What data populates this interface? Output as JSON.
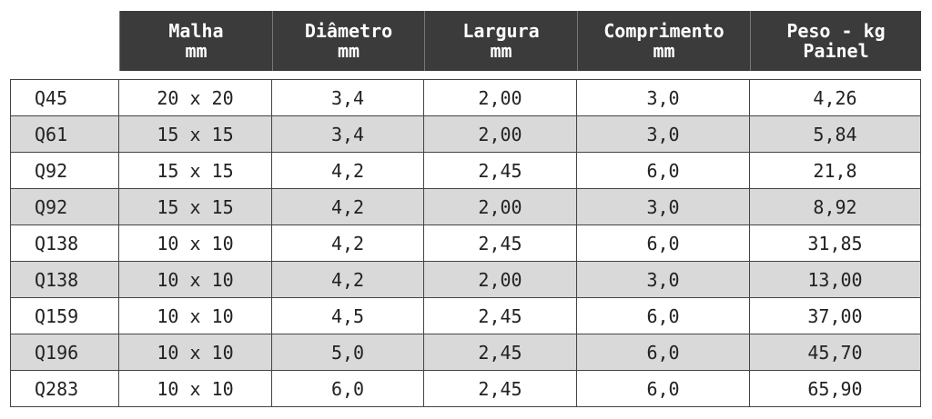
{
  "table": {
    "header": [
      [
        "Malha",
        "mm"
      ],
      [
        "Diâmetro",
        "mm"
      ],
      [
        "Largura",
        "mm"
      ],
      [
        "Comprimento",
        "mm"
      ],
      [
        "Peso - kg",
        "Painel"
      ]
    ],
    "rows": [
      [
        "Q45",
        "20 x 20",
        "3,4",
        "2,00",
        "3,0",
        "4,26"
      ],
      [
        "Q61",
        "15 x 15",
        "3,4",
        "2,00",
        "3,0",
        "5,84"
      ],
      [
        "Q92",
        "15 x 15",
        "4,2",
        "2,45",
        "6,0",
        "21,8"
      ],
      [
        "Q92",
        "15 x 15",
        "4,2",
        "2,00",
        "3,0",
        "8,92"
      ],
      [
        "Q138",
        "10 x 10",
        "4,2",
        "2,45",
        "6,0",
        "31,85"
      ],
      [
        "Q138",
        "10 x 10",
        "4,2",
        "2,00",
        "3,0",
        "13,00"
      ],
      [
        "Q159",
        "10 x 10",
        "4,5",
        "2,45",
        "6,0",
        "37,00"
      ],
      [
        "Q196",
        "10 x 10",
        "5,0",
        "2,45",
        "6,0",
        "45,70"
      ],
      [
        "Q283",
        "10 x 10",
        "6,0",
        "2,45",
        "6,0",
        "65,90"
      ]
    ]
  }
}
